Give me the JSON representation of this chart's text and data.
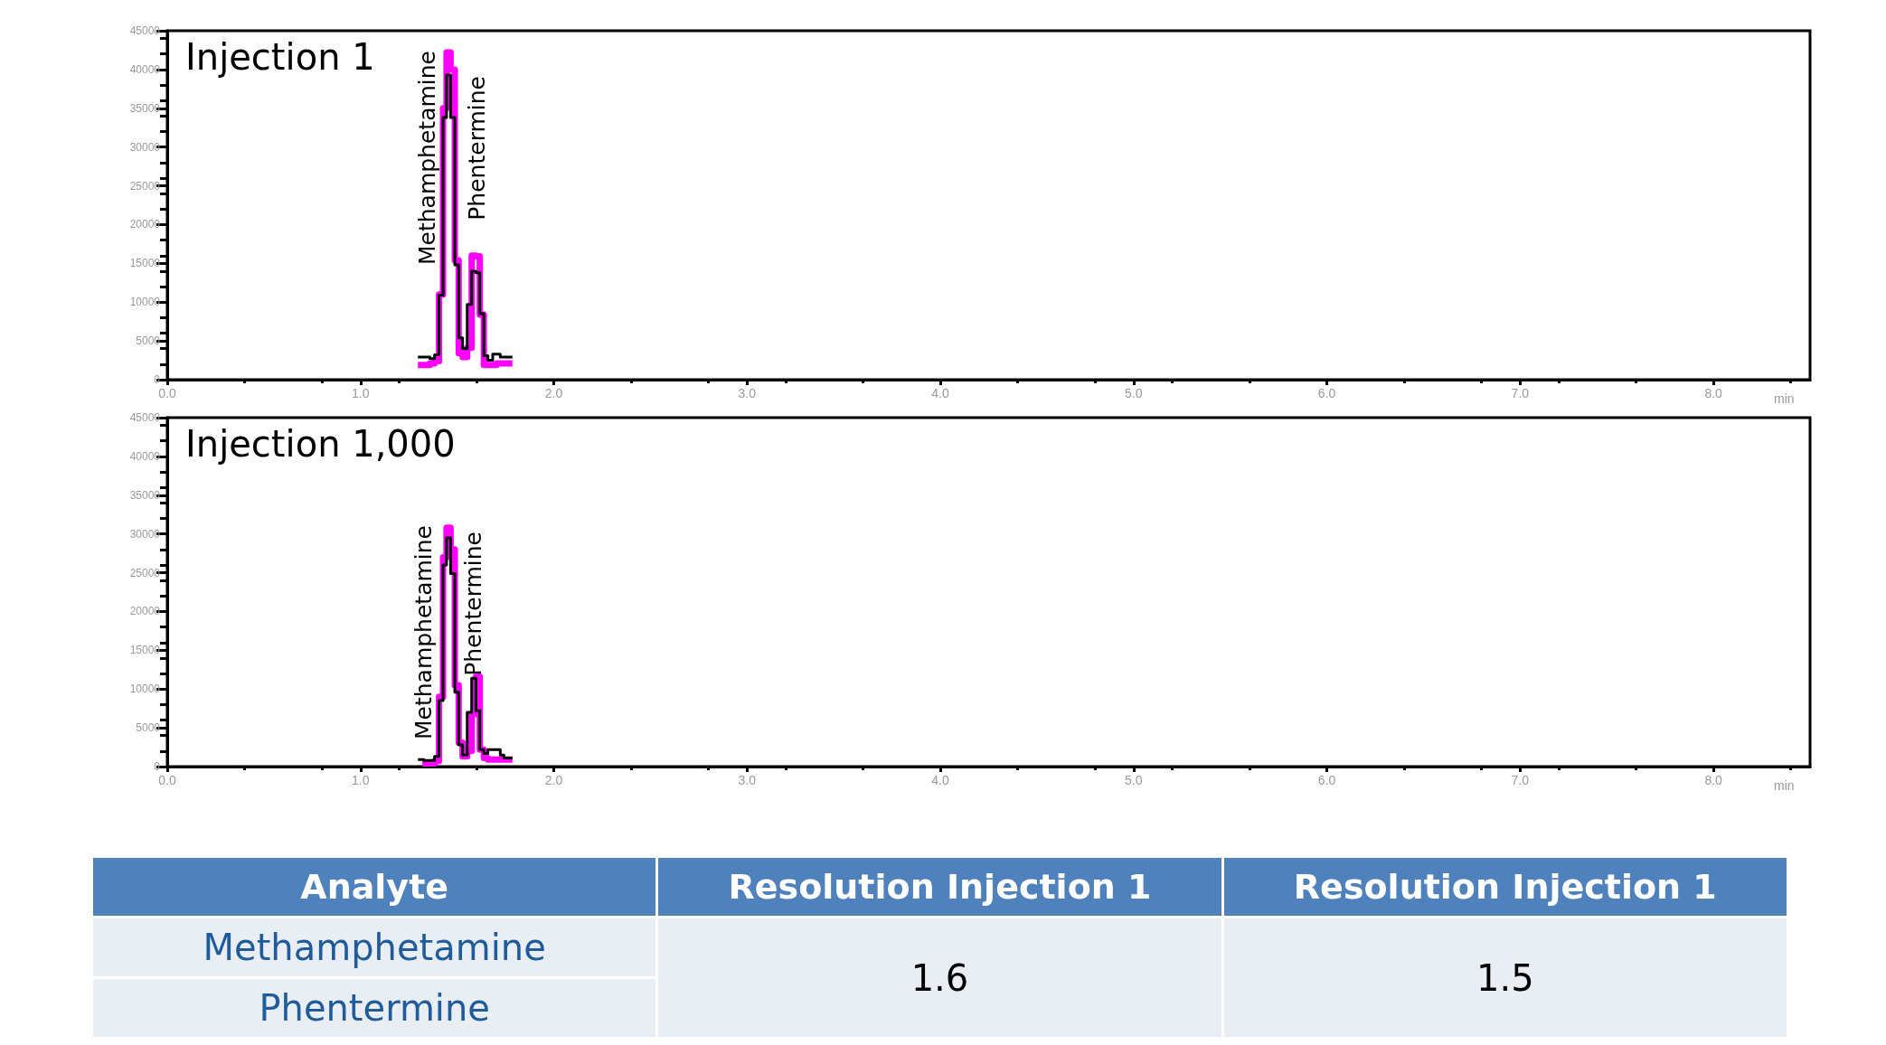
{
  "chart_data": [
    {
      "type": "step",
      "title": "Injection 1",
      "xlabel": "min",
      "xlim": [
        0,
        8.5
      ],
      "xticks": [
        {
          "value": 0,
          "label": "0.0"
        },
        {
          "value": 1,
          "label": "1.0"
        },
        {
          "value": 2,
          "label": "2.0"
        },
        {
          "value": 3,
          "label": "3.0"
        },
        {
          "value": 4,
          "label": "4.0"
        },
        {
          "value": 5,
          "label": "5.0"
        },
        {
          "value": 6,
          "label": "6.0"
        },
        {
          "value": 7,
          "label": "7.0"
        },
        {
          "value": 8,
          "label": "8.0"
        }
      ],
      "ylim": [
        0,
        45000
      ],
      "yticks": [
        0,
        5000,
        10000,
        15000,
        20000,
        25000,
        30000,
        35000,
        40000,
        45000
      ],
      "grid": false,
      "marker": "none",
      "series": [
        {
          "color": "#ff00ff",
          "x": [
            1.297,
            1.359,
            1.383,
            1.406,
            1.427,
            1.445,
            1.466,
            1.488,
            1.508,
            1.528,
            1.552,
            1.575,
            1.597,
            1.617,
            1.638,
            1.659,
            1.703,
            1.786
          ],
          "values": [
            1900,
            2100,
            2400,
            11000,
            35000,
            42200,
            40000,
            15400,
            3400,
            2900,
            4100,
            16000,
            15900,
            8400,
            1900,
            1900,
            2100,
            2100
          ]
        },
        {
          "color": "#000000",
          "x": [
            1.297,
            1.359,
            1.383,
            1.406,
            1.427,
            1.445,
            1.466,
            1.488,
            1.508,
            1.528,
            1.552,
            1.575,
            1.597,
            1.617,
            1.638,
            1.659,
            1.684,
            1.723,
            1.786
          ],
          "values": [
            2900,
            2700,
            3200,
            10900,
            33800,
            39300,
            33800,
            14800,
            5400,
            4000,
            9700,
            14000,
            13800,
            8500,
            3100,
            2500,
            3300,
            2900,
            2900
          ]
        }
      ],
      "annotations": [
        "Methamphetamine",
        "Phentermine"
      ]
    },
    {
      "type": "step",
      "title": "Injection 1,000",
      "xlabel": "min",
      "xlim": [
        0,
        8.5
      ],
      "xticks": [
        {
          "value": 0,
          "label": "0.0"
        },
        {
          "value": 1,
          "label": "1.0"
        },
        {
          "value": 2,
          "label": "2.0"
        },
        {
          "value": 3,
          "label": "3.0"
        },
        {
          "value": 4,
          "label": "4.0"
        },
        {
          "value": 5,
          "label": "5.0"
        },
        {
          "value": 6,
          "label": "6.0"
        },
        {
          "value": 7,
          "label": "7.0"
        },
        {
          "value": 8,
          "label": "8.0"
        }
      ],
      "ylim": [
        0,
        45000
      ],
      "yticks": [
        0,
        5000,
        10000,
        15000,
        20000,
        25000,
        30000,
        35000,
        40000,
        45000
      ],
      "grid": false,
      "marker": "none",
      "series": [
        {
          "color": "#ff00ff",
          "x": [
            1.32,
            1.383,
            1.406,
            1.427,
            1.445,
            1.466,
            1.488,
            1.508,
            1.528,
            1.552,
            1.575,
            1.597,
            1.617,
            1.638,
            1.659,
            1.786
          ],
          "values": [
            400,
            700,
            9000,
            27000,
            30800,
            28000,
            10500,
            3100,
            1300,
            2000,
            6800,
            11600,
            2200,
            1100,
            900,
            900
          ]
        },
        {
          "color": "#000000",
          "x": [
            1.297,
            1.328,
            1.383,
            1.406,
            1.427,
            1.445,
            1.466,
            1.488,
            1.508,
            1.528,
            1.552,
            1.575,
            1.597,
            1.617,
            1.638,
            1.659,
            1.723,
            1.742,
            1.786
          ],
          "values": [
            900,
            800,
            1300,
            8500,
            26000,
            29500,
            24900,
            9600,
            2800,
            1500,
            7000,
            11400,
            7200,
            2200,
            1700,
            2200,
            1500,
            1100,
            1100
          ]
        }
      ],
      "annotations": [
        "Methamphetamine",
        "Phentermine"
      ]
    },
    {
      "type": "other",
      "annotations": [
        "Analyte",
        "Resolution Injection 1",
        "Resolution Injection 1",
        "Methamphetamine",
        "1.6",
        "1.5",
        "Phentermine"
      ]
    }
  ]
}
